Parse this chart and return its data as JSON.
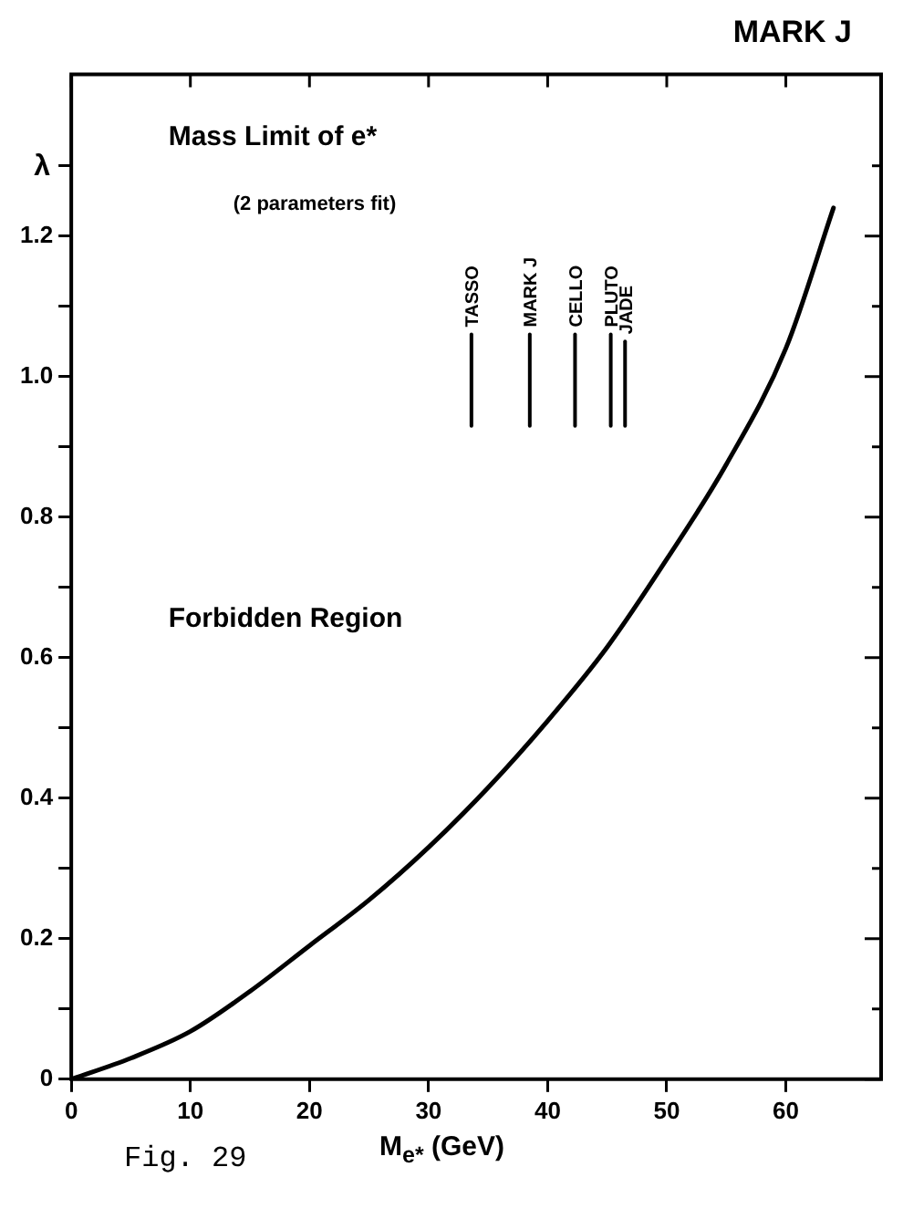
{
  "chart_data": {
    "type": "line",
    "title": "MARK J",
    "xlabel": "M$_{e*}$ (GeV)",
    "ylabel": "λ",
    "annotations": [
      "Mass Limit of e*",
      "(2 parameters fit)",
      "Forbidden Region",
      "Fig. 29"
    ],
    "xlim": [
      0,
      68
    ],
    "ylim": [
      0,
      1.43
    ],
    "xticks": [
      0,
      10,
      20,
      30,
      40,
      50,
      60
    ],
    "yticks": [
      0,
      {
        "value": 0.1,
        "label": null
      },
      0.2,
      {
        "value": 0.3,
        "label": null
      },
      0.4,
      {
        "value": 0.5,
        "label": null
      },
      0.6,
      {
        "value": 0.7,
        "label": null
      },
      0.8,
      {
        "value": 0.9,
        "label": null
      },
      {
        "value": 1,
        "label": "1.0"
      },
      {
        "value": 1.1,
        "label": null
      },
      1.2,
      {
        "value": 1.3,
        "label": null
      }
    ],
    "grid": false,
    "legend": false,
    "marker": "none",
    "line_style": "solid",
    "series": [
      {
        "color": "#000000",
        "x": [
          0,
          5,
          10,
          15,
          20,
          25,
          30,
          35,
          40,
          45,
          50,
          55,
          60,
          64
        ],
        "values": [
          0,
          0.03,
          0.068,
          0.125,
          0.19,
          0.255,
          0.33,
          0.415,
          0.51,
          0.615,
          0.74,
          0.875,
          1.04,
          1.24
        ]
      },
      {
        "name": "TASSO",
        "color": "#000000",
        "x": [
          33.6,
          33.6
        ],
        "values": [
          0.93,
          1.06
        ]
      },
      {
        "name": "MARK J",
        "color": "#000000",
        "x": [
          38.5,
          38.5
        ],
        "values": [
          0.93,
          1.06
        ]
      },
      {
        "name": "CELLO",
        "color": "#000000",
        "x": [
          42.3,
          42.3
        ],
        "values": [
          0.93,
          1.06
        ]
      },
      {
        "name": "PLUTO",
        "color": "#000000",
        "x": [
          45.3,
          45.3
        ],
        "values": [
          0.93,
          1.06
        ]
      },
      {
        "name": "JADE",
        "color": "#000000",
        "x": [
          46.5,
          46.5
        ],
        "values": [
          0.93,
          1.05
        ]
      }
    ]
  }
}
